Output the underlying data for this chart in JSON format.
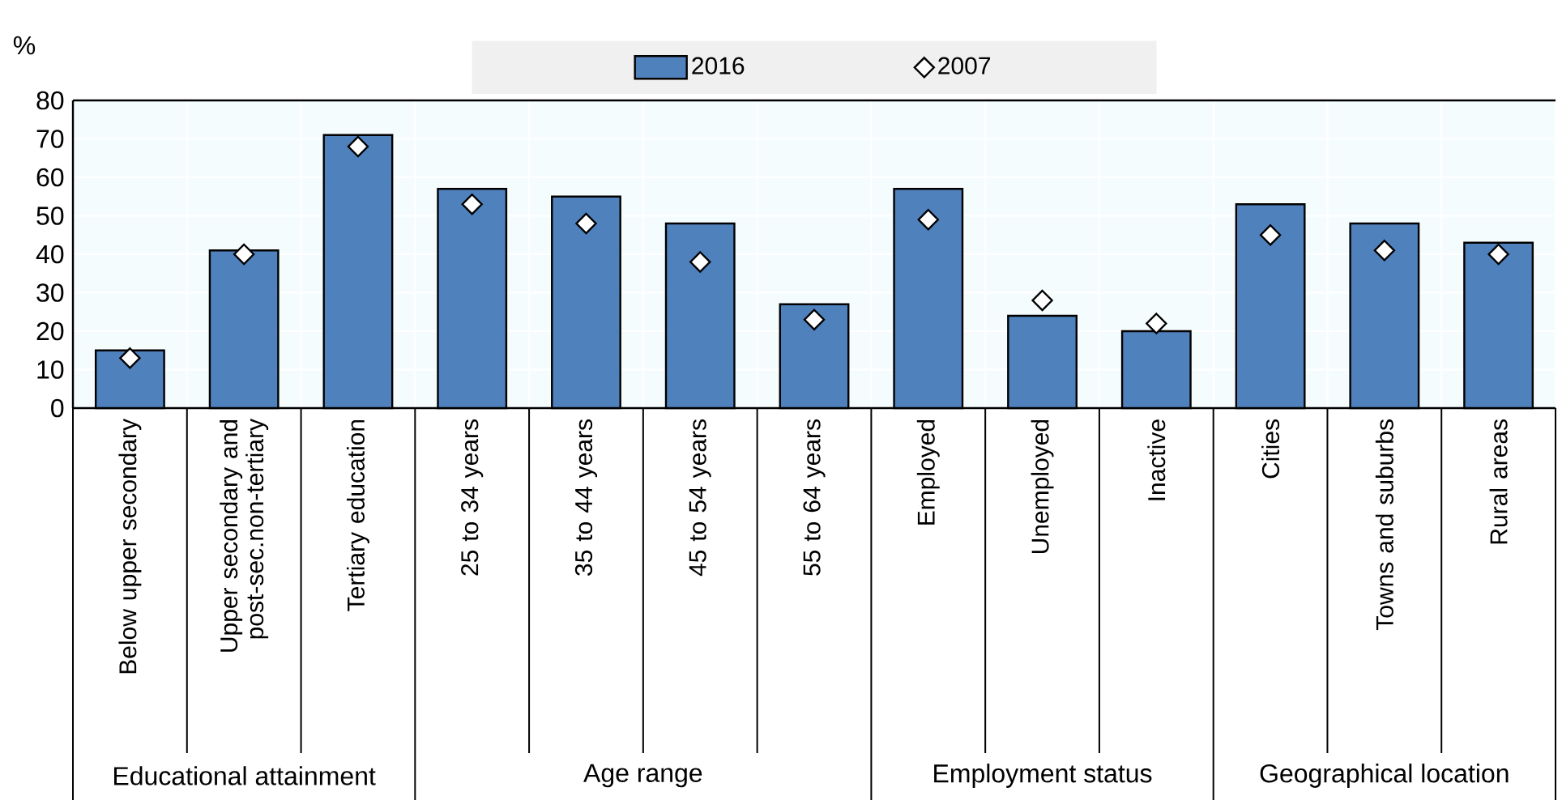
{
  "chart_data": {
    "type": "bar",
    "ylabel": "%",
    "categories": [
      "Below upper secondary",
      "Upper secondary and post-sec.non-tertiary",
      "Tertiary education",
      "25 to 34 years",
      "35 to 44 years",
      "45 to 54 years",
      "55 to 64 years",
      "Employed",
      "Unemployed",
      "Inactive",
      "Cities",
      "Towns and suburbs",
      "Rural areas"
    ],
    "series": [
      {
        "name": "2016",
        "color": "#4f81bd",
        "values": [
          15,
          41,
          71,
          57,
          55,
          48,
          27,
          57,
          24,
          20,
          53,
          48,
          43
        ]
      },
      {
        "name": "2007",
        "type": "scatter",
        "color": "#ffffff",
        "marker": "diamond",
        "x": [
          "Below upper secondary",
          "Upper secondary and post-sec.non-tertiary",
          "Tertiary education",
          "25 to 34 years",
          "35 to 44 years",
          "45 to 54 years",
          "55 to 64 years",
          "Employed",
          "Unemployed",
          "Inactive",
          "Cities",
          "Towns and suburbs",
          "Rural areas"
        ],
        "values": [
          13,
          40,
          68,
          53,
          48,
          38,
          23,
          49,
          28,
          22,
          45,
          41,
          40
        ]
      }
    ],
    "annotations": [
      "Educational attainment",
      "Age range",
      "Employment status",
      "Geographical location"
    ],
    "ylim": [
      0,
      80
    ],
    "yticks": [
      0,
      10,
      20,
      30,
      40,
      50,
      60,
      70,
      80
    ],
    "grid": true,
    "legend": "top"
  }
}
